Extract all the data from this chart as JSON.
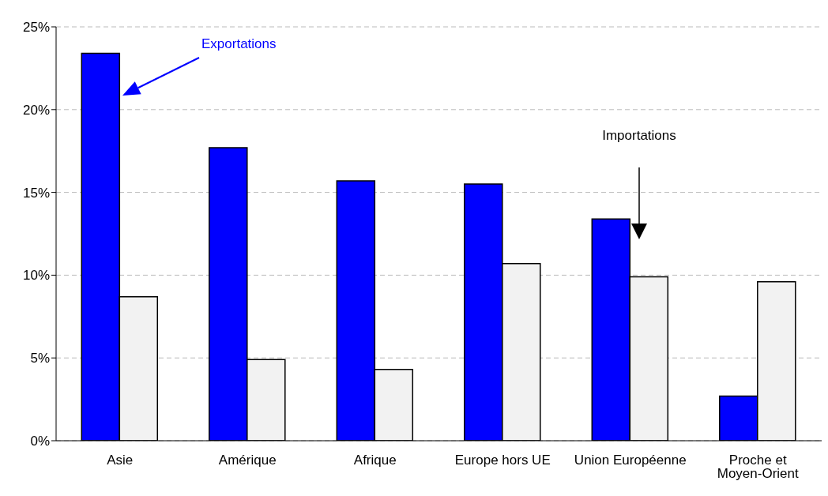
{
  "chart_data": {
    "type": "bar",
    "categories": [
      "Asie",
      "Amérique",
      "Afrique",
      "Europe hors UE",
      "Union Européenne",
      "Proche et Moyen-Orient"
    ],
    "series": [
      {
        "color": "#0000ff",
        "values": [
          23.4,
          17.7,
          15.7,
          15.5,
          13.4,
          2.7
        ]
      },
      {
        "color": "#f2f2f2",
        "values": [
          8.7,
          4.9,
          4.3,
          10.7,
          9.9,
          9.6
        ]
      }
    ],
    "ylim": [
      0,
      25
    ],
    "yticks": [
      {
        "value": 0,
        "label": "0%"
      },
      {
        "value": 5,
        "label": "5%"
      },
      {
        "value": 10,
        "label": "10%"
      },
      {
        "value": 15,
        "label": "15%"
      },
      {
        "value": 20,
        "label": "20%"
      },
      {
        "value": 25,
        "label": "25%"
      }
    ],
    "grid": "y",
    "annotations": [
      "Exportations",
      "Importations"
    ]
  }
}
